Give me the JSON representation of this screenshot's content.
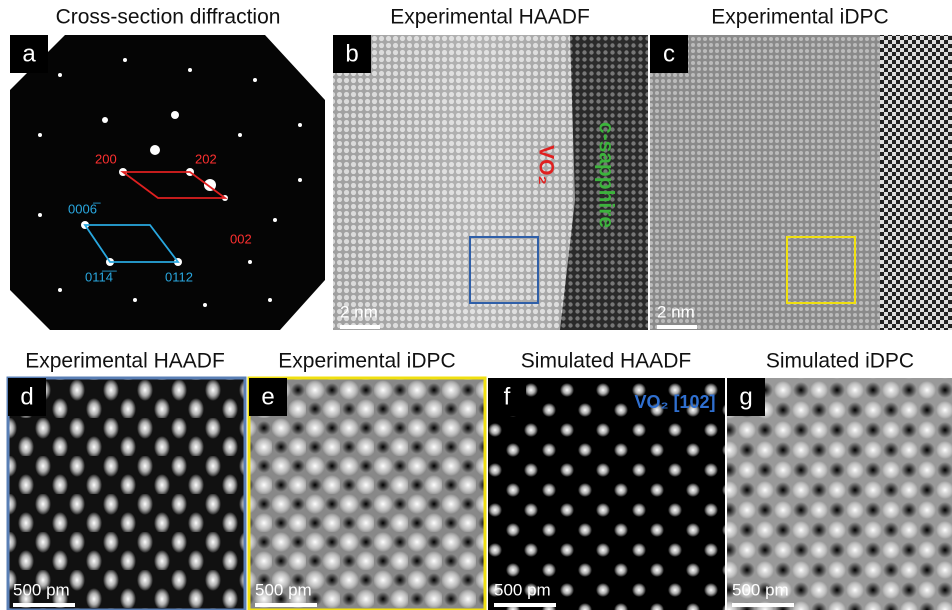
{
  "panels": [
    {
      "title": "Cross-section diffraction",
      "label": "a",
      "annotations": [
        "200",
        "202",
        "002",
        "0006̅",
        "011̅4̅",
        "0112"
      ]
    },
    {
      "title": "Experimental HAADF",
      "label": "b",
      "annotations": [
        "VO₂",
        "c-sapphire"
      ],
      "scale_bar": "2 nm"
    },
    {
      "title": "Experimental iDPC",
      "label": "c",
      "scale_bar": "2 nm"
    },
    {
      "title": "Experimental HAADF",
      "label": "d",
      "scale_bar": "500 pm"
    },
    {
      "title": "Experimental iDPC",
      "label": "e",
      "scale_bar": "500 pm"
    },
    {
      "title": "Simulated HAADF",
      "label": "f",
      "annotations": [
        "VO₂ [102]"
      ],
      "scale_bar": "500 pm"
    },
    {
      "title": "Simulated iDPC",
      "label": "g",
      "scale_bar": "500 pm"
    }
  ]
}
